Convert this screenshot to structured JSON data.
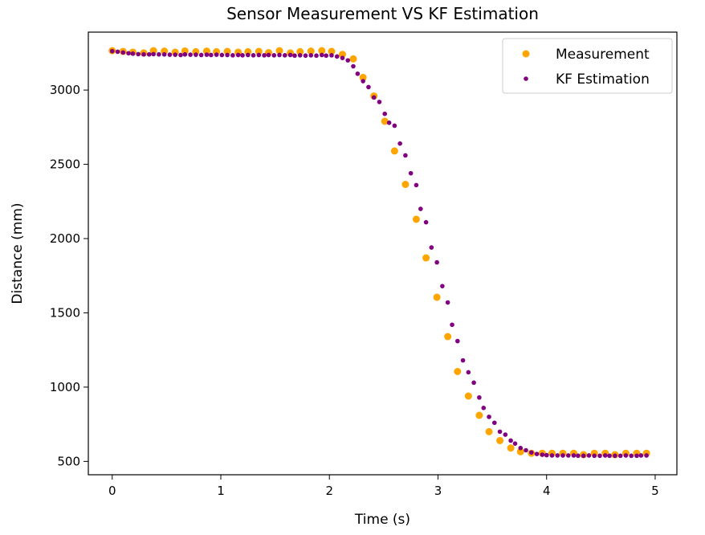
{
  "chart_data": {
    "type": "scatter",
    "title": "Sensor Measurement VS KF Estimation",
    "xlabel": "Time (s)",
    "ylabel": "Distance (mm)",
    "xlim": [
      -0.22,
      5.2
    ],
    "ylim": [
      410,
      3390
    ],
    "xticks": [
      0,
      1,
      2,
      3,
      4,
      5
    ],
    "yticks": [
      500,
      1000,
      1500,
      2000,
      2500,
      3000
    ],
    "xtick_labels": [
      "0",
      "1",
      "2",
      "3",
      "4",
      "5"
    ],
    "ytick_labels": [
      "500",
      "1000",
      "1500",
      "2000",
      "2500",
      "3000"
    ],
    "grid": false,
    "legend_position": "top-right",
    "series": [
      {
        "name": "Measurement",
        "color": "#FFA500",
        "marker_size": "large",
        "x": [
          0.0,
          0.1,
          0.19,
          0.29,
          0.38,
          0.48,
          0.58,
          0.67,
          0.77,
          0.87,
          0.96,
          1.06,
          1.16,
          1.25,
          1.35,
          1.44,
          1.54,
          1.64,
          1.73,
          1.83,
          1.93,
          2.02,
          2.12,
          2.22,
          2.31,
          2.41,
          2.51,
          2.6,
          2.7,
          2.8,
          2.89,
          2.99,
          3.09,
          3.18,
          3.28,
          3.38,
          3.47,
          3.57,
          3.67,
          3.76,
          3.86,
          3.96,
          4.05,
          4.15,
          4.25,
          4.34,
          4.44,
          4.54,
          4.63,
          4.73,
          4.83,
          4.92
        ],
        "y": [
          3265,
          3260,
          3255,
          3250,
          3265,
          3262,
          3255,
          3263,
          3258,
          3262,
          3258,
          3260,
          3255,
          3258,
          3260,
          3252,
          3265,
          3250,
          3258,
          3262,
          3265,
          3260,
          3240,
          3210,
          3085,
          2960,
          2790,
          2590,
          2365,
          2130,
          1870,
          1605,
          1340,
          1105,
          940,
          810,
          700,
          640,
          590,
          565,
          555,
          555,
          555,
          555,
          555,
          545,
          555,
          555,
          545,
          555,
          555,
          555
        ]
      },
      {
        "name": "KF Estimation",
        "color": "#800080",
        "marker_size": "small",
        "x": [
          0.0,
          0.05,
          0.1,
          0.15,
          0.19,
          0.24,
          0.29,
          0.34,
          0.38,
          0.43,
          0.48,
          0.53,
          0.58,
          0.63,
          0.67,
          0.72,
          0.77,
          0.82,
          0.87,
          0.91,
          0.96,
          1.01,
          1.06,
          1.11,
          1.16,
          1.2,
          1.25,
          1.3,
          1.35,
          1.4,
          1.44,
          1.49,
          1.54,
          1.59,
          1.64,
          1.68,
          1.73,
          1.78,
          1.83,
          1.88,
          1.93,
          1.97,
          2.02,
          2.07,
          2.12,
          2.17,
          2.22,
          2.26,
          2.31,
          2.36,
          2.41,
          2.46,
          2.51,
          2.55,
          2.6,
          2.65,
          2.7,
          2.75,
          2.8,
          2.84,
          2.89,
          2.94,
          2.99,
          3.04,
          3.09,
          3.13,
          3.18,
          3.23,
          3.28,
          3.33,
          3.38,
          3.42,
          3.47,
          3.52,
          3.57,
          3.62,
          3.67,
          3.71,
          3.76,
          3.81,
          3.86,
          3.91,
          3.96,
          4.0,
          4.05,
          4.1,
          4.15,
          4.2,
          4.25,
          4.29,
          4.34,
          4.39,
          4.44,
          4.49,
          4.54,
          4.58,
          4.63,
          4.68,
          4.73,
          4.78,
          4.83,
          4.87,
          4.92
        ],
        "y": [
          3262,
          3258,
          3253,
          3248,
          3245,
          3242,
          3240,
          3240,
          3242,
          3240,
          3240,
          3238,
          3238,
          3236,
          3240,
          3238,
          3238,
          3236,
          3238,
          3236,
          3238,
          3236,
          3236,
          3234,
          3236,
          3234,
          3236,
          3234,
          3236,
          3234,
          3236,
          3234,
          3236,
          3234,
          3236,
          3232,
          3234,
          3232,
          3234,
          3232,
          3236,
          3232,
          3234,
          3226,
          3216,
          3200,
          3160,
          3110,
          3060,
          3020,
          2950,
          2920,
          2840,
          2780,
          2760,
          2640,
          2560,
          2440,
          2360,
          2200,
          2110,
          1940,
          1840,
          1680,
          1570,
          1420,
          1310,
          1180,
          1100,
          1030,
          930,
          860,
          800,
          760,
          700,
          680,
          640,
          620,
          590,
          575,
          560,
          550,
          545,
          542,
          540,
          540,
          540,
          540,
          540,
          538,
          538,
          540,
          538,
          538,
          540,
          538,
          538,
          538,
          540,
          538,
          538,
          540,
          540
        ]
      }
    ]
  }
}
